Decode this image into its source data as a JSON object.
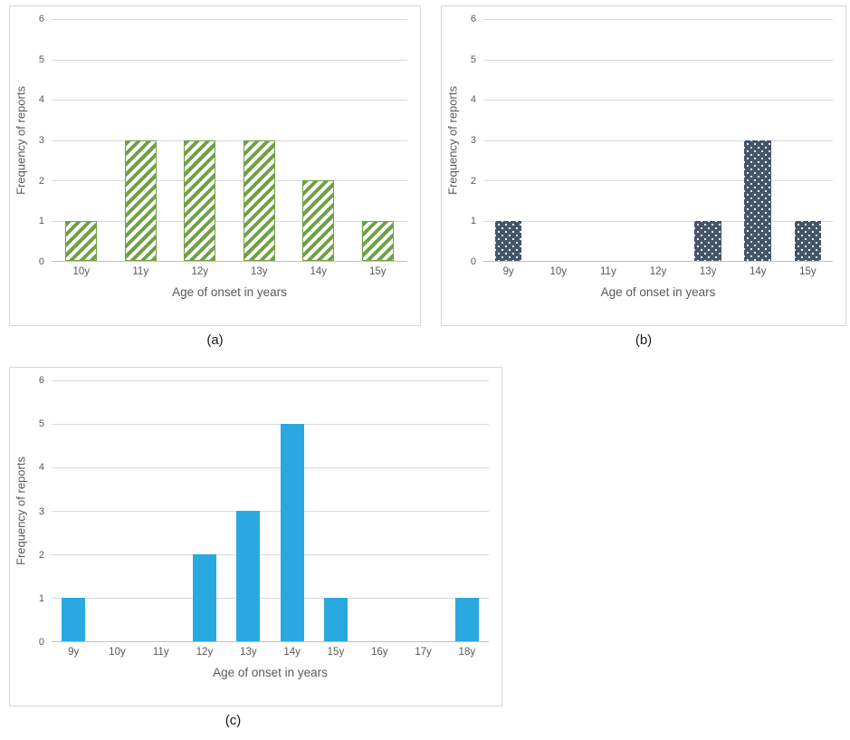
{
  "chart_data": [
    {
      "id": "a",
      "type": "bar",
      "title": "",
      "categories": [
        "10y",
        "11y",
        "12y",
        "13y",
        "14y",
        "15y"
      ],
      "values": [
        1,
        3,
        3,
        3,
        2,
        1
      ],
      "xlabel": "Age of onset in years",
      "ylabel": "Frequency of reports",
      "ylim": [
        0,
        6
      ],
      "yticks": [
        0,
        1,
        2,
        3,
        4,
        5,
        6
      ],
      "grid": "horizontal",
      "legend": "none",
      "bar_pattern": "diagonal-hatch",
      "bar_color": "#6fa145",
      "caption": "(a)"
    },
    {
      "id": "b",
      "type": "bar",
      "title": "",
      "categories": [
        "9y",
        "10y",
        "11y",
        "12y",
        "13y",
        "14y",
        "15y"
      ],
      "values": [
        1,
        0,
        0,
        0,
        1,
        3,
        1
      ],
      "xlabel": "Age of onset in years",
      "ylabel": "Frequency of reports",
      "ylim": [
        0,
        6
      ],
      "yticks": [
        0,
        1,
        2,
        3,
        4,
        5,
        6
      ],
      "grid": "horizontal",
      "legend": "none",
      "bar_pattern": "dots",
      "bar_color": "#44546a",
      "caption": "(b)"
    },
    {
      "id": "c",
      "type": "bar",
      "title": "",
      "categories": [
        "9y",
        "10y",
        "11y",
        "12y",
        "13y",
        "14y",
        "15y",
        "16y",
        "17y",
        "18y"
      ],
      "values": [
        1,
        0,
        0,
        2,
        3,
        5,
        1,
        0,
        0,
        1
      ],
      "xlabel": "Age of onset in years",
      "ylabel": "Frequency of reports",
      "ylim": [
        0,
        6
      ],
      "yticks": [
        0,
        1,
        2,
        3,
        4,
        5,
        6
      ],
      "grid": "horizontal",
      "legend": "none",
      "bar_pattern": "solid",
      "bar_color": "#29a9e0",
      "caption": "(c)"
    }
  ],
  "style_colors": {
    "gridline": "#d9d9d9",
    "axis_line": "#bfbfbf",
    "axis_text": "#595959",
    "panel_border": "#d7d7d7",
    "background": "#ffffff"
  }
}
